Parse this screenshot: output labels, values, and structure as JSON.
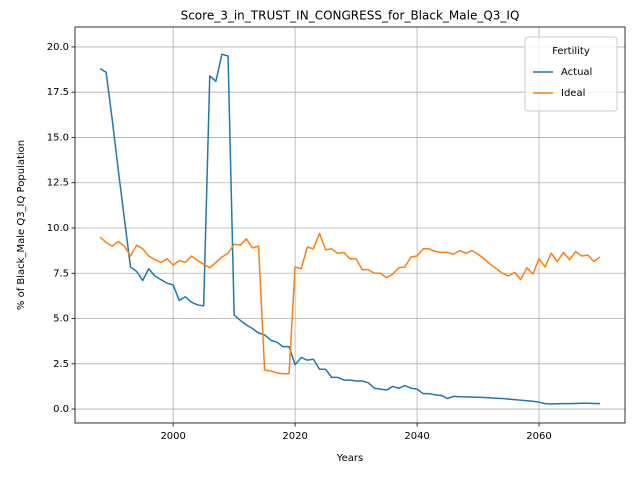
{
  "chart_data": {
    "type": "line",
    "title": "Score_3_in_TRUST_IN_CONGRESS_for_Black_Male_Q3_IQ",
    "xlabel": "Years",
    "ylabel": "% of Black_Male Q3_IQ Population",
    "x": [
      1988,
      1989,
      1990,
      1991,
      1992,
      1993,
      1994,
      1995,
      1996,
      1997,
      1998,
      1999,
      2000,
      2001,
      2002,
      2003,
      2004,
      2005,
      2006,
      2007,
      2008,
      2009,
      2010,
      2011,
      2012,
      2013,
      2014,
      2015,
      2016,
      2017,
      2018,
      2019,
      2020,
      2021,
      2022,
      2023,
      2024,
      2025,
      2026,
      2027,
      2028,
      2029,
      2030,
      2031,
      2032,
      2033,
      2034,
      2035,
      2036,
      2037,
      2038,
      2039,
      2040,
      2041,
      2042,
      2043,
      2044,
      2045,
      2046,
      2047,
      2048,
      2049,
      2050,
      2051,
      2052,
      2053,
      2054,
      2055,
      2056,
      2057,
      2058,
      2059,
      2060,
      2061,
      2062,
      2063,
      2064,
      2065,
      2066,
      2067,
      2068,
      2069,
      2070
    ],
    "series": [
      {
        "name": "Actual",
        "color": "#1f77b4",
        "values": [
          18.8,
          18.6,
          16.0,
          13.2,
          10.5,
          7.85,
          7.6,
          7.1,
          7.75,
          7.35,
          7.15,
          6.95,
          6.85,
          6.0,
          6.2,
          5.9,
          5.75,
          5.7,
          18.4,
          18.1,
          19.6,
          19.5,
          5.2,
          4.9,
          4.65,
          4.45,
          4.2,
          4.1,
          3.8,
          3.7,
          3.45,
          3.45,
          2.45,
          2.85,
          2.7,
          2.75,
          2.2,
          2.2,
          1.75,
          1.75,
          1.6,
          1.6,
          1.55,
          1.55,
          1.45,
          1.15,
          1.1,
          1.05,
          1.25,
          1.15,
          1.3,
          1.15,
          1.1,
          0.85,
          0.85,
          0.78,
          0.75,
          0.58,
          0.7,
          0.68,
          0.67,
          0.66,
          0.65,
          0.64,
          0.62,
          0.6,
          0.58,
          0.55,
          0.52,
          0.49,
          0.46,
          0.43,
          0.38,
          0.3,
          0.28,
          0.29,
          0.3,
          0.3,
          0.31,
          0.32,
          0.32,
          0.31,
          0.3
        ]
      },
      {
        "name": "Ideal",
        "color": "#ff7f0e",
        "values": [
          9.5,
          9.2,
          9.0,
          9.25,
          9.0,
          8.45,
          9.05,
          8.85,
          8.45,
          8.25,
          8.1,
          8.3,
          7.95,
          8.2,
          8.1,
          8.45,
          8.2,
          8.0,
          7.8,
          8.1,
          8.4,
          8.6,
          9.1,
          9.05,
          9.4,
          8.9,
          9.0,
          2.15,
          2.1,
          2.0,
          1.95,
          1.95,
          7.85,
          7.75,
          8.95,
          8.85,
          9.7,
          8.8,
          8.85,
          8.6,
          8.65,
          8.3,
          8.3,
          7.7,
          7.7,
          7.5,
          7.5,
          7.25,
          7.45,
          7.8,
          7.85,
          8.4,
          8.45,
          8.85,
          8.85,
          8.7,
          8.65,
          8.65,
          8.55,
          8.75,
          8.6,
          8.75,
          8.55,
          8.3,
          8.0,
          7.75,
          7.5,
          7.35,
          7.55,
          7.15,
          7.8,
          7.45,
          8.3,
          7.85,
          8.6,
          8.15,
          8.65,
          8.25,
          8.7,
          8.45,
          8.5,
          8.15,
          8.4
        ]
      }
    ],
    "xlim": [
      1983.9,
      2074.1
    ],
    "xticks": [
      2000,
      2020,
      2040,
      2060
    ],
    "ylim": [
      -0.77,
      21.1
    ],
    "yticks": [
      {
        "value": 0,
        "label": "0.0"
      },
      {
        "value": 2.5,
        "label": "2.5"
      },
      {
        "value": 5,
        "label": "5.0"
      },
      {
        "value": 7.5,
        "label": "7.5"
      },
      {
        "value": 10,
        "label": "10.0"
      },
      {
        "value": 12.5,
        "label": "12.5"
      },
      {
        "value": 15,
        "label": "15.0"
      },
      {
        "value": 17.5,
        "label": "17.5"
      },
      {
        "value": 20,
        "label": "20.0"
      }
    ],
    "grid": true,
    "legend_title": "Fertility",
    "legend_position": "upper-right"
  }
}
